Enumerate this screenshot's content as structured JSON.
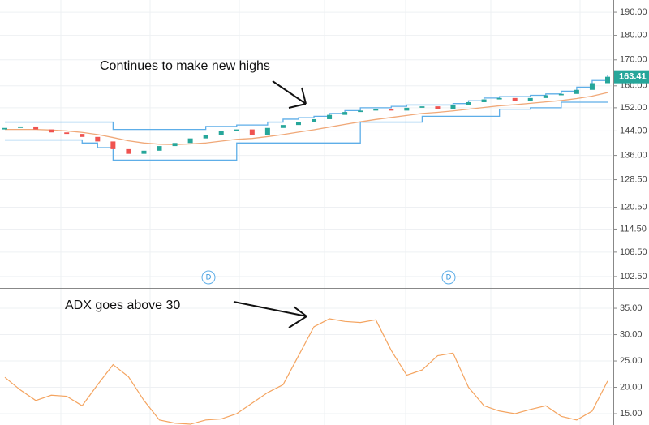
{
  "chart_data": [
    {
      "type": "candlestick",
      "log_scale": true,
      "grid": true,
      "annotation": "Continues to make new highs",
      "markers": [
        "D",
        "D"
      ],
      "ylim": [
        99.8,
        195.5
      ],
      "yticks": [
        {
          "value": 190,
          "label": "190.00"
        },
        {
          "value": 180,
          "label": "180.00"
        },
        {
          "value": 170,
          "label": "170.00"
        },
        {
          "value": 160,
          "label": "160.00"
        },
        {
          "value": 152,
          "label": "152.00"
        },
        {
          "value": 144,
          "label": "144.00"
        },
        {
          "value": 136,
          "label": "136.00"
        },
        {
          "value": 128.5,
          "label": "128.50"
        },
        {
          "value": 120.5,
          "label": "120.50"
        },
        {
          "value": 114.5,
          "label": "114.50"
        },
        {
          "value": 108.5,
          "label": "108.50"
        },
        {
          "value": 102.5,
          "label": "102.50"
        }
      ],
      "up_color": "#26a69a",
      "down_color": "#ef5350",
      "open": [
        144.5,
        145,
        145.5,
        144.5,
        143.5,
        143,
        142,
        140.5,
        138,
        136.5,
        137.5,
        139,
        140,
        141.5,
        142.5,
        144,
        144.5,
        142.5,
        145,
        146,
        147,
        148,
        149.5,
        150.5,
        151,
        151.5,
        151,
        152,
        152.5,
        151.5,
        153,
        154,
        155,
        155.5,
        154.5,
        155.5,
        156.5,
        157,
        158.5,
        161
      ],
      "close": [
        145,
        145.5,
        144.5,
        143.5,
        143,
        142,
        140.5,
        138,
        136.5,
        137.5,
        139,
        140,
        141.5,
        142.5,
        144,
        144.5,
        142.5,
        145,
        146,
        147,
        148,
        149.5,
        150.5,
        151,
        151.5,
        151,
        152,
        152.5,
        151.5,
        153,
        154,
        155,
        155.5,
        154.5,
        155.5,
        156.5,
        157,
        158.5,
        161,
        163.41
      ],
      "lines": [
        {
          "color": "#5eaee8",
          "step": true,
          "values": [
            147,
            147,
            147,
            147,
            147,
            147,
            147,
            144.5,
            144.5,
            144.5,
            144.5,
            144.5,
            144.5,
            145.5,
            145.5,
            146,
            146,
            147,
            148,
            148.5,
            149,
            150,
            151,
            152,
            152,
            152.5,
            153,
            153,
            153,
            153.5,
            154.5,
            155.5,
            156,
            156,
            156.5,
            157,
            158,
            159.5,
            162,
            164
          ]
        },
        {
          "color": "#5eaee8",
          "step": true,
          "values": [
            141,
            141,
            141,
            141,
            141,
            140,
            138.5,
            134.5,
            134.5,
            134.5,
            134.5,
            134.5,
            134.5,
            134.5,
            134.5,
            140,
            140,
            140,
            140,
            140,
            140,
            140,
            140,
            147,
            147,
            147,
            147,
            149,
            149,
            149,
            149,
            149,
            151.5,
            151.5,
            152,
            152,
            154,
            154,
            154,
            154
          ]
        },
        {
          "color": "#f0a878",
          "step": false,
          "values": [
            144.5,
            144.5,
            144.5,
            144.3,
            144,
            143.5,
            142.8,
            141.8,
            140.7,
            140,
            139.6,
            139.5,
            139.7,
            140,
            140.6,
            141.2,
            141.5,
            142.1,
            142.8,
            143.6,
            144.4,
            145.3,
            146.2,
            147.1,
            147.9,
            148.6,
            149.3,
            150,
            150.4,
            150.9,
            151.5,
            152.1,
            152.7,
            153.1,
            153.6,
            154.1,
            154.6,
            155.3,
            156.2,
            157.5
          ]
        }
      ]
    },
    {
      "type": "line",
      "grid": true,
      "annotation": "ADX goes above 30",
      "ylim": [
        12.85,
        38.7
      ],
      "yticks": [
        {
          "value": 35,
          "label": "35.00"
        },
        {
          "value": 30,
          "label": "30.00"
        },
        {
          "value": 25,
          "label": "25.00"
        },
        {
          "value": 20,
          "label": "20.00"
        },
        {
          "value": 15,
          "label": "15.00"
        }
      ],
      "color": "#f4a460",
      "values": [
        21.9,
        19.5,
        17.5,
        18.5,
        18.3,
        16.5,
        20.5,
        24.3,
        22,
        17.5,
        13.8,
        13.2,
        13,
        13.8,
        14,
        15,
        17,
        19,
        20.5,
        26,
        31.5,
        33,
        32.5,
        32.3,
        32.8,
        27,
        22.3,
        23.3,
        26,
        26.5,
        20,
        16.5,
        15.5,
        15,
        15.8,
        16.5,
        14.5,
        13.8,
        15.5,
        21.2
      ]
    }
  ]
}
